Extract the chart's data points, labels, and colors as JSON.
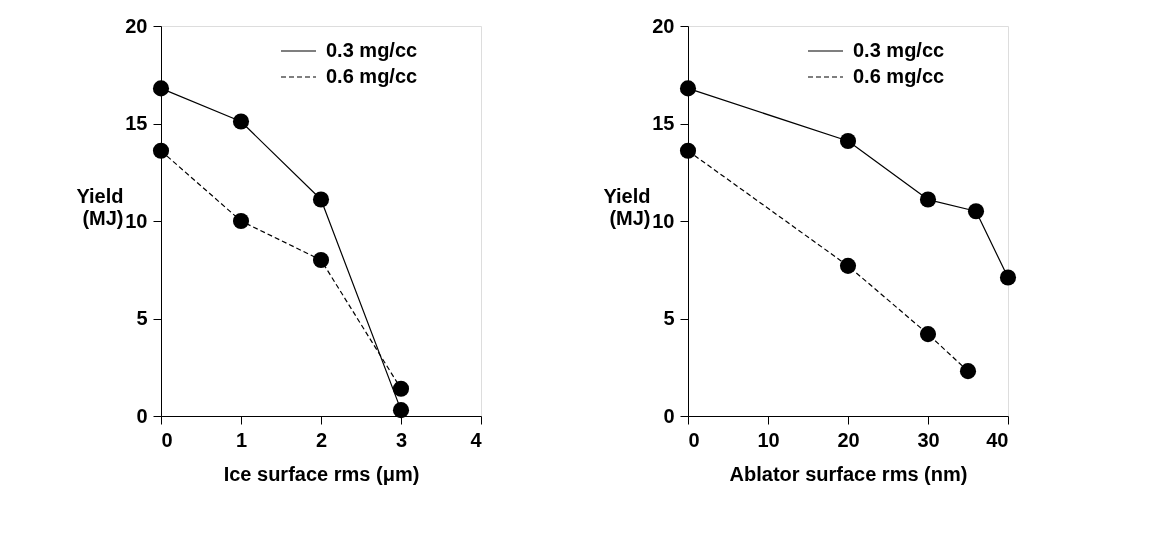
{
  "chart_data": [
    {
      "type": "line",
      "xlabel": "Ice surface rms (μm)",
      "ylabel": "Yield (MJ)",
      "x": [
        0,
        1,
        2,
        3
      ],
      "xlim": [
        0,
        4
      ],
      "xticks": [
        0,
        1,
        2,
        3,
        4
      ],
      "ylim": [
        0,
        20
      ],
      "yticks": [
        0,
        5,
        10,
        15,
        20
      ],
      "grid": false,
      "legend": "top right",
      "marker": "circle",
      "series": [
        {
          "name": "0.3 mg/cc",
          "color": "#000000",
          "line_style": "solid",
          "values": [
            16.8,
            15.1,
            11.1,
            0.3
          ]
        },
        {
          "name": "0.6 mg/cc",
          "color": "#000000",
          "line_style": "dashed",
          "values": [
            13.6,
            10.0,
            8.0,
            1.4
          ]
        }
      ]
    },
    {
      "type": "line",
      "xlabel": "Ablator surface rms (nm)",
      "ylabel": "Yield (MJ)",
      "xlim": [
        0,
        40
      ],
      "xticks": [
        0,
        10,
        20,
        30,
        40
      ],
      "ylim": [
        0,
        20
      ],
      "yticks": [
        0,
        5,
        10,
        15,
        20
      ],
      "grid": false,
      "legend": "top right",
      "marker": "circle",
      "series": [
        {
          "name": "0.3 mg/cc",
          "color": "#000000",
          "line_style": "solid",
          "x": [
            0,
            20,
            30,
            36,
            40
          ],
          "values": [
            16.8,
            14.1,
            11.1,
            10.5,
            7.1
          ]
        },
        {
          "name": "0.6 mg/cc",
          "color": "#000000",
          "line_style": "dashed",
          "x": [
            0,
            20,
            30,
            35
          ],
          "values": [
            13.6,
            7.7,
            4.2,
            2.3
          ]
        }
      ]
    }
  ]
}
